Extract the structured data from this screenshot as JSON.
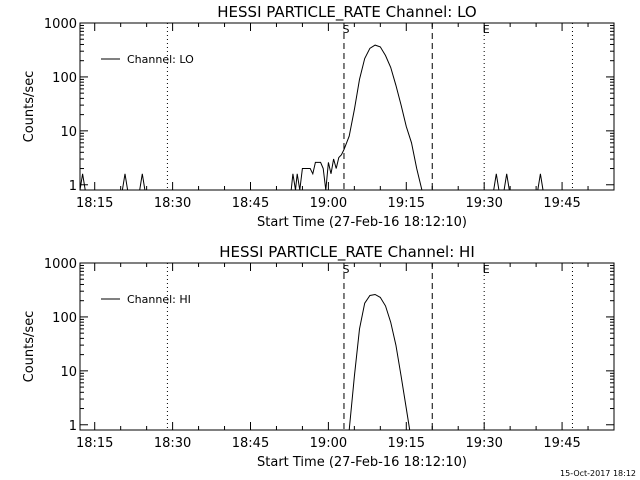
{
  "footer": {
    "stamp": "15-Oct-2017 18:12"
  },
  "chart_data": [
    {
      "type": "line",
      "title": "HESSI PARTICLE_RATE Channel: LO",
      "xlabel": "Start Time (27-Feb-16 18:12:10)",
      "ylabel": "Counts/sec",
      "yscale": "log",
      "ylim": [
        0.8,
        1000
      ],
      "xlim": [
        "18:12:10",
        "19:55:00"
      ],
      "grid": false,
      "legend_position": "top-left",
      "x_ticks": [
        "18:15",
        "18:30",
        "18:45",
        "19:00",
        "19:15",
        "19:30",
        "19:45"
      ],
      "y_ticks": [
        "1",
        "10",
        "100",
        "1000"
      ],
      "markers": [
        {
          "label": "S",
          "time": "19:03",
          "style": "dashed"
        },
        {
          "label": "",
          "time": "19:20",
          "style": "dashed"
        },
        {
          "label": "",
          "time": "18:29",
          "style": "dotted"
        },
        {
          "label": "E",
          "time": "19:30",
          "style": "dotted"
        },
        {
          "label": "",
          "time": "19:47",
          "style": "dotted"
        }
      ],
      "series": [
        {
          "name": "Channel: LO",
          "points": [
            [
              "18:12:10",
              0.8
            ],
            [
              "18:12:40",
              1.6
            ],
            [
              "18:13:10",
              0.8
            ],
            [
              "18:20:20",
              0.8
            ],
            [
              "18:20:50",
              1.6
            ],
            [
              "18:21:20",
              0.8
            ],
            [
              "18:23:40",
              0.8
            ],
            [
              "18:24:10",
              1.6
            ],
            [
              "18:24:40",
              0.8
            ],
            [
              "18:52:50",
              0.8
            ],
            [
              "18:53:10",
              1.6
            ],
            [
              "18:53:40",
              0.8
            ],
            [
              "18:54:00",
              1.6
            ],
            [
              "18:54:30",
              0.8
            ],
            [
              "18:55:00",
              2.0
            ],
            [
              "18:56:30",
              2.0
            ],
            [
              "18:57:00",
              1.6
            ],
            [
              "18:57:30",
              2.6
            ],
            [
              "18:58:30",
              2.6
            ],
            [
              "18:59:00",
              2.0
            ],
            [
              "18:59:30",
              0.8
            ],
            [
              "19:00:00",
              2.6
            ],
            [
              "19:00:30",
              1.6
            ],
            [
              "19:01:00",
              3.0
            ],
            [
              "19:01:30",
              2.0
            ],
            [
              "19:02:00",
              3.2
            ],
            [
              "19:02:30",
              3.6
            ],
            [
              "19:03:00",
              4.5
            ],
            [
              "19:04:00",
              8.0
            ],
            [
              "19:05:00",
              25
            ],
            [
              "19:06:00",
              90
            ],
            [
              "19:07:00",
              220
            ],
            [
              "19:08:00",
              340
            ],
            [
              "19:09:00",
              390
            ],
            [
              "19:10:00",
              360
            ],
            [
              "19:11:00",
              250
            ],
            [
              "19:12:00",
              150
            ],
            [
              "19:13:00",
              70
            ],
            [
              "19:14:00",
              30
            ],
            [
              "19:15:00",
              12
            ],
            [
              "19:16:00",
              6
            ],
            [
              "19:17:00",
              2
            ],
            [
              "19:18:00",
              0.8
            ],
            [
              "19:31:50",
              0.8
            ],
            [
              "19:32:20",
              1.6
            ],
            [
              "19:32:50",
              0.8
            ],
            [
              "19:33:50",
              0.8
            ],
            [
              "19:34:20",
              1.6
            ],
            [
              "19:34:50",
              0.8
            ],
            [
              "19:40:20",
              0.8
            ],
            [
              "19:40:50",
              1.6
            ],
            [
              "19:41:20",
              0.8
            ]
          ]
        }
      ]
    },
    {
      "type": "line",
      "title": "HESSI PARTICLE_RATE Channel: HI",
      "xlabel": "Start Time (27-Feb-16 18:12:10)",
      "ylabel": "Counts/sec",
      "yscale": "log",
      "ylim": [
        0.8,
        1000
      ],
      "xlim": [
        "18:12:10",
        "19:55:00"
      ],
      "grid": false,
      "legend_position": "top-left",
      "x_ticks": [
        "18:15",
        "18:30",
        "18:45",
        "19:00",
        "19:15",
        "19:30",
        "19:45"
      ],
      "y_ticks": [
        "1",
        "10",
        "100",
        "1000"
      ],
      "markers": [
        {
          "label": "S",
          "time": "19:03",
          "style": "dashed"
        },
        {
          "label": "",
          "time": "19:20",
          "style": "dashed"
        },
        {
          "label": "",
          "time": "18:29",
          "style": "dotted"
        },
        {
          "label": "E",
          "time": "19:30",
          "style": "dotted"
        },
        {
          "label": "",
          "time": "19:47",
          "style": "dotted"
        }
      ],
      "series": [
        {
          "name": "Channel: HI",
          "points": [
            [
              "19:04:00",
              0.8
            ],
            [
              "19:05:00",
              8
            ],
            [
              "19:06:00",
              60
            ],
            [
              "19:07:00",
              180
            ],
            [
              "19:08:00",
              250
            ],
            [
              "19:09:00",
              260
            ],
            [
              "19:10:00",
              230
            ],
            [
              "19:11:00",
              160
            ],
            [
              "19:12:00",
              80
            ],
            [
              "19:13:00",
              30
            ],
            [
              "19:14:00",
              8
            ],
            [
              "19:15:00",
              2
            ],
            [
              "19:15:40",
              0.8
            ]
          ]
        }
      ]
    }
  ]
}
